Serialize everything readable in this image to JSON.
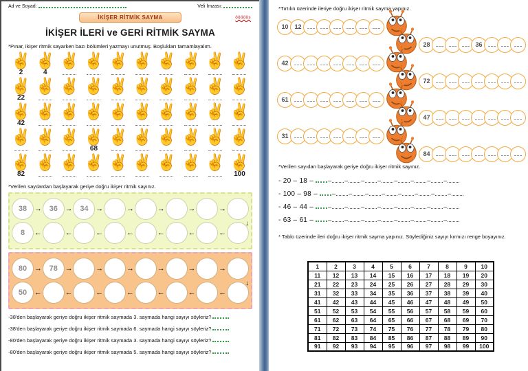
{
  "page_left": {
    "header": {
      "name_label": "Ad ve Soyad:",
      "signature_label": "Veli İmzası:"
    },
    "watermark": "ööööös",
    "badge": "İKİŞER RİTMİK SAYMA",
    "title": "İKİŞER İLERİ ve GERİ RİTMİK SAYMA",
    "hands_prompt": "*Pınar, ikişer ritmik sayarken bazı bölümleri yazmayı unutmuş. Boşlukları tamamlayalım.",
    "hand_rows": [
      [
        "2",
        "4",
        "",
        "",
        "",
        "",
        "",
        "",
        "",
        ""
      ],
      [
        "22",
        "",
        "",
        "",
        "",
        "",
        "",
        "",
        "",
        ""
      ],
      [
        "42",
        "",
        "",
        "",
        "",
        "",
        "",
        "",
        "",
        ""
      ],
      [
        "",
        "",
        "",
        "68",
        "",
        "",
        "",
        "",
        "",
        ""
      ],
      [
        "82",
        "",
        "",
        "",
        "",
        "",
        "",
        "",
        "",
        "100"
      ]
    ],
    "boxes_prompt": "*Verilen sayılardan başlayarak geriye doğru ikişer ritmik sayınız.",
    "green_box": {
      "rows": [
        {
          "dir": "right",
          "cells": [
            "38",
            "36",
            "34",
            "",
            "",
            "",
            "",
            ""
          ]
        },
        {
          "dir": "left",
          "cells": [
            "8",
            "",
            "",
            "",
            "",
            "",
            "",
            ""
          ]
        }
      ]
    },
    "orange_box": {
      "rows": [
        {
          "dir": "right",
          "cells": [
            "80",
            "78",
            "",
            "",
            "",
            "",
            "",
            ""
          ]
        },
        {
          "dir": "left",
          "cells": [
            "50",
            "",
            "",
            "",
            "",
            "",
            "",
            ""
          ]
        }
      ]
    },
    "questions": [
      "-38'den başlayarak geriye doğru ikişer ritmik saymada 3. saymada hangi sayıyı söyleriz?",
      "-38'den başlayarak geriye doğru ikişer ritmik saymada 6. saymada hangi sayıyı söyleriz?",
      "-80'den başlayarak geriye doğru ikişer ritmik saymada 3. saymada hangi sayıyı söyleriz?",
      "-80'den başlayarak geriye doğru ikişer ritmik saymada 5. saymada hangi sayıyı söyleriz?"
    ]
  },
  "page_right": {
    "caterpillar_prompt": "*Tırtılın üzerinde ileriye doğru ikişer ritmik sayma yapınız.",
    "caterpillars": [
      {
        "head": "right",
        "cells": [
          "10",
          "12",
          "",
          "",
          "",
          "",
          "",
          ""
        ]
      },
      {
        "head": "left",
        "cells": [
          "28",
          "",
          "",
          "",
          "36",
          "",
          "",
          ""
        ]
      },
      {
        "head": "right",
        "cells": [
          "42",
          "",
          "",
          "",
          "",
          "",
          "",
          ""
        ]
      },
      {
        "head": "left",
        "cells": [
          "72",
          "",
          "",
          "",
          "",
          "",
          "",
          ""
        ]
      },
      {
        "head": "right",
        "cells": [
          "61",
          "",
          "",
          "",
          "",
          "",
          "",
          ""
        ]
      },
      {
        "head": "left",
        "cells": [
          "47",
          "",
          "",
          "",
          "",
          "",
          "",
          ""
        ]
      },
      {
        "head": "right",
        "cells": [
          "31",
          "",
          "",
          "",
          "",
          "",
          "",
          ""
        ]
      },
      {
        "head": "left",
        "cells": [
          "84",
          "",
          "",
          "",
          "",
          "",
          "",
          ""
        ]
      }
    ],
    "countdown_prompt": "*Verilen sayıdan başlayarak geriye doğru ikişer ritmik sayınız.",
    "countdown_lines": [
      "- 20 – 18 –",
      "- 100 – 98 –",
      "- 46 – 44 –",
      "- 63 – 61 –"
    ],
    "blank_segments": 9,
    "table_prompt": "* Tablo üzerinde ileri doğru ikişer ritmik sayma yapınız. Söylediğiniz sayıyı kırmızı renge boyayınız.",
    "table": [
      [
        1,
        2,
        3,
        4,
        5,
        6,
        7,
        8,
        9,
        10
      ],
      [
        11,
        12,
        13,
        14,
        15,
        16,
        17,
        18,
        19,
        20
      ],
      [
        21,
        22,
        23,
        24,
        25,
        26,
        27,
        28,
        29,
        30
      ],
      [
        31,
        32,
        33,
        34,
        35,
        36,
        37,
        38,
        39,
        40
      ],
      [
        41,
        42,
        43,
        44,
        45,
        46,
        47,
        48,
        49,
        50
      ],
      [
        51,
        52,
        53,
        54,
        55,
        56,
        57,
        58,
        59,
        60
      ],
      [
        61,
        62,
        63,
        64,
        65,
        66,
        67,
        68,
        69,
        70
      ],
      [
        71,
        72,
        73,
        74,
        75,
        76,
        77,
        78,
        79,
        80
      ],
      [
        81,
        82,
        83,
        84,
        85,
        86,
        87,
        88,
        89,
        90
      ],
      [
        91,
        92,
        93,
        94,
        95,
        96,
        97,
        98,
        99,
        100
      ]
    ]
  },
  "icons": {
    "hand": "victory-hand",
    "arrow_right": "→",
    "arrow_left": "←",
    "arrow_down": "↓"
  },
  "colors": {
    "badge_fill": "#f8be87",
    "badge_border": "#e89a56",
    "badge_text": "#9c3a12",
    "hand_orange": "#f0875c",
    "green_box_bg": "#f2f7c8",
    "orange_box_bg": "#f9c38c",
    "caterpillar_orange": "#ed7d31",
    "segment_border": "#f4a83c",
    "divider_blue": "#45648c",
    "squiggle_green": "#2f9e44",
    "watermark_red": "#c00000",
    "table_border": "#000000"
  }
}
